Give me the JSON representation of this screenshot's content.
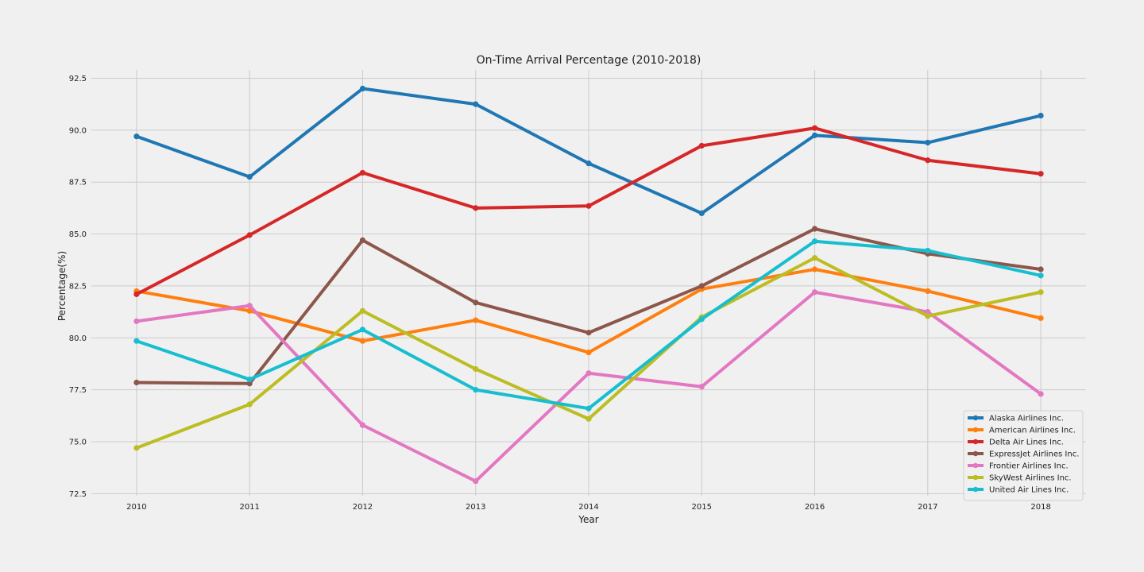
{
  "chart_data": {
    "type": "line",
    "title": "On-Time Arrival Percentage (2010-2018)",
    "xlabel": "Year",
    "ylabel": "Percentage(%)",
    "x": [
      2010,
      2011,
      2012,
      2013,
      2014,
      2015,
      2016,
      2017,
      2018
    ],
    "x_tick_labels": [
      "2010",
      "2011",
      "2012",
      "2013",
      "2014",
      "2015",
      "2016",
      "2017",
      "2018"
    ],
    "xlim": [
      2009.6,
      2018.4
    ],
    "ylim": [
      72.4,
      92.9
    ],
    "y_ticks": [
      72.5,
      75.0,
      77.5,
      80.0,
      82.5,
      85.0,
      87.5,
      90.0,
      92.5
    ],
    "y_tick_labels": [
      "72.5",
      "75.0",
      "77.5",
      "80.0",
      "82.5",
      "85.0",
      "87.5",
      "90.0",
      "92.5"
    ],
    "grid": true,
    "legend_position": "bottom-right",
    "series": [
      {
        "name": "Alaska Airlines Inc.",
        "color": "#1f77b4",
        "values": [
          89.7,
          87.75,
          92.0,
          91.25,
          88.4,
          86.0,
          89.75,
          89.4,
          90.7
        ]
      },
      {
        "name": "American Airlines Inc.",
        "color": "#ff7f0e",
        "values": [
          82.25,
          81.3,
          79.85,
          80.85,
          79.3,
          82.35,
          83.3,
          82.25,
          80.95
        ]
      },
      {
        "name": "Delta Air Lines Inc.",
        "color": "#d62728",
        "values": [
          82.1,
          84.95,
          87.95,
          86.25,
          86.35,
          89.25,
          90.1,
          88.55,
          87.9
        ]
      },
      {
        "name": "ExpressJet Airlines Inc.",
        "color": "#8c564b",
        "values": [
          77.85,
          77.8,
          84.7,
          81.7,
          80.25,
          82.5,
          85.25,
          84.05,
          83.3
        ]
      },
      {
        "name": "Frontier Airlines Inc.",
        "color": "#e377c2",
        "values": [
          80.8,
          81.55,
          75.8,
          73.1,
          78.3,
          77.65,
          82.2,
          81.25,
          77.3
        ]
      },
      {
        "name": "SkyWest Airlines Inc.",
        "color": "#bcbd22",
        "values": [
          74.7,
          76.8,
          81.3,
          78.5,
          76.1,
          81.0,
          83.85,
          81.05,
          82.2
        ]
      },
      {
        "name": "United Air Lines Inc.",
        "color": "#17becf",
        "values": [
          79.85,
          78.0,
          80.4,
          77.5,
          76.6,
          80.9,
          84.65,
          84.2,
          83.0
        ]
      }
    ]
  }
}
